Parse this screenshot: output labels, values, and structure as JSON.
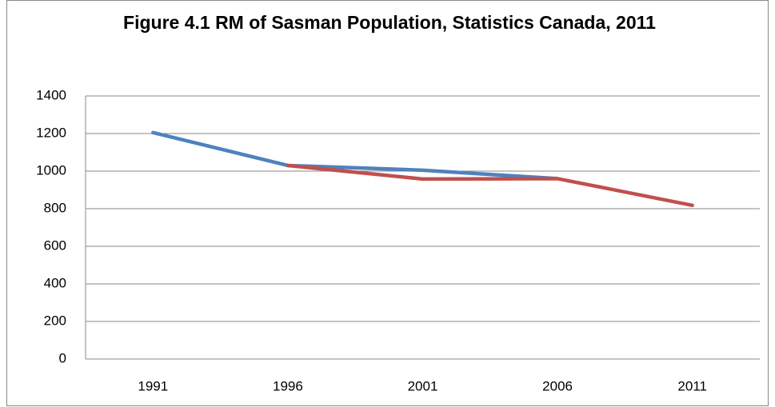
{
  "chart_data": {
    "type": "line",
    "title": "Figure 4.1 RM of Sasman Population, Statistics Canada, 2011",
    "categories": [
      "1991",
      "1996",
      "2001",
      "2006",
      "2011"
    ],
    "series": [
      {
        "color": "#4f81bd",
        "values": [
          1205,
          1030,
          1005,
          960,
          null
        ]
      },
      {
        "color": "#c0504d",
        "values": [
          null,
          1030,
          958,
          960,
          818
        ]
      }
    ],
    "ylim": [
      0,
      1400
    ],
    "yticks": [
      0,
      200,
      400,
      600,
      800,
      1000,
      1200,
      1400
    ],
    "grid": true
  }
}
